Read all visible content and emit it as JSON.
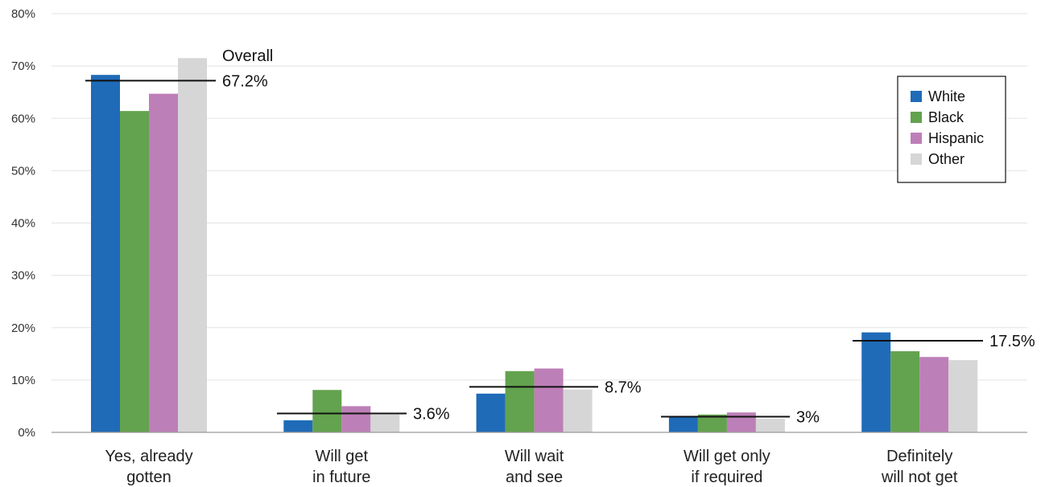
{
  "chart_data": {
    "type": "bar",
    "categories": [
      [
        "Yes, already",
        "gotten"
      ],
      [
        "Will get",
        "in future"
      ],
      [
        "Will wait",
        "and see"
      ],
      [
        "Will get only",
        "if required"
      ],
      [
        "Definitely",
        "will not get"
      ]
    ],
    "series": [
      {
        "name": "White",
        "color": "#1f6bb8",
        "values": [
          68.3,
          2.3,
          7.4,
          3.0,
          19.1
        ]
      },
      {
        "name": "Black",
        "color": "#63a24e",
        "values": [
          61.4,
          8.1,
          11.7,
          3.4,
          15.5
        ]
      },
      {
        "name": "Hispanic",
        "color": "#bd7fb8",
        "values": [
          64.7,
          5.0,
          12.2,
          3.8,
          14.4
        ]
      },
      {
        "name": "Other",
        "color": "#d6d6d6",
        "values": [
          71.5,
          3.4,
          8.2,
          2.6,
          13.8
        ]
      }
    ],
    "yticks": [
      0,
      10,
      20,
      30,
      40,
      50,
      60,
      70,
      80
    ],
    "ytick_labels": [
      "0%",
      "10%",
      "20%",
      "30%",
      "40%",
      "50%",
      "60%",
      "70%",
      "80%"
    ],
    "ylim": [
      0,
      80
    ],
    "grid": true,
    "legend_position": "top-right",
    "overall": {
      "values": [
        67.2,
        3.6,
        8.7,
        3.0,
        17.5
      ],
      "labels": [
        "67.2%",
        "3.6%",
        "8.7%",
        "3%",
        "17.5%"
      ],
      "first_label_title": "Overall"
    }
  }
}
